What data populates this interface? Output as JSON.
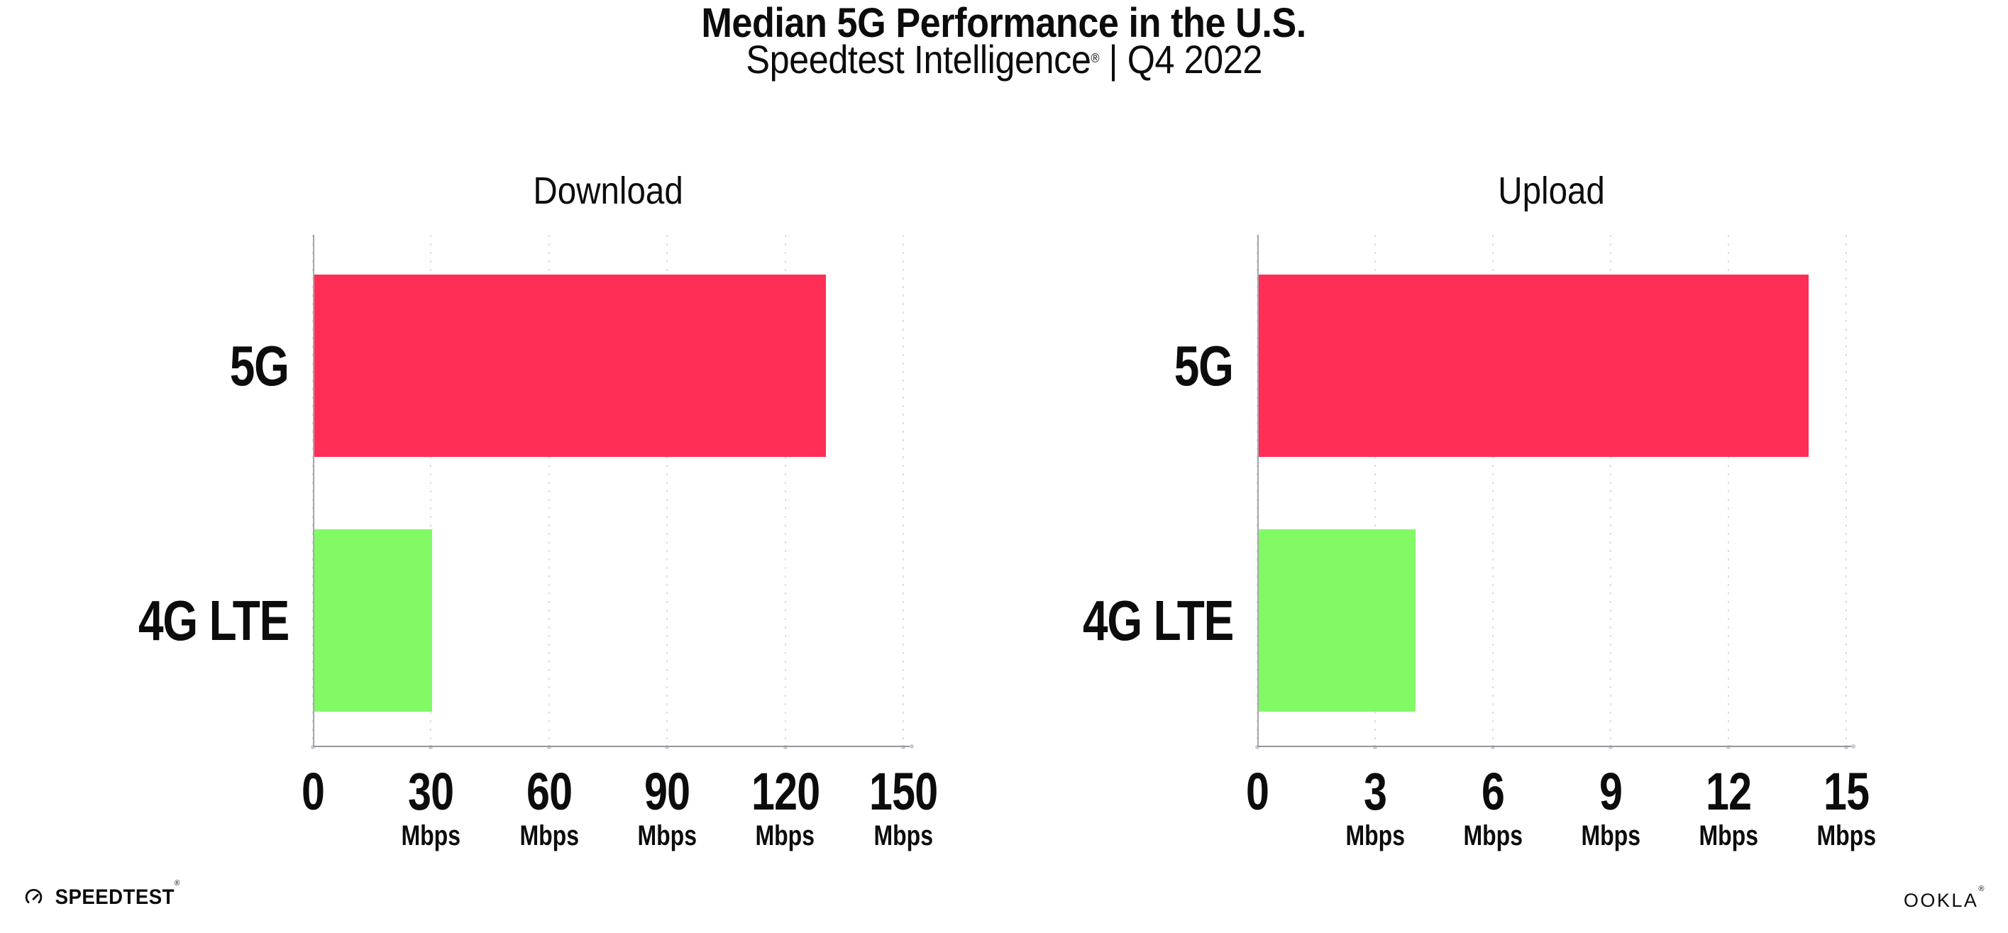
{
  "header": {
    "title": "Median 5G Performance in the U.S.",
    "subtitle_brand": "Speedtest Intelligence",
    "subtitle_mark": "®",
    "subtitle_rest": " | Q4 2022"
  },
  "chart_data": [
    {
      "type": "bar",
      "orientation": "horizontal",
      "title": "Download",
      "categories": [
        "5G",
        "4G LTE"
      ],
      "values": [
        130,
        30
      ],
      "unit": "Mbps",
      "xlabel": "",
      "ylabel": "",
      "xlim": [
        0,
        150
      ],
      "xticks": [
        0,
        30,
        60,
        90,
        120,
        150
      ],
      "bar_colors": [
        "#ff2e56",
        "#82fa66"
      ],
      "grid": "vertical-dotted",
      "legend": "none"
    },
    {
      "type": "bar",
      "orientation": "horizontal",
      "title": "Upload",
      "categories": [
        "5G",
        "4G LTE"
      ],
      "values": [
        14,
        4
      ],
      "unit": "Mbps",
      "xlabel": "",
      "ylabel": "",
      "xlim": [
        0,
        15
      ],
      "xticks": [
        0,
        3,
        6,
        9,
        12,
        15
      ],
      "bar_colors": [
        "#ff2e56",
        "#82fa66"
      ],
      "grid": "vertical-dotted",
      "legend": "none"
    }
  ],
  "footer": {
    "speedtest_label": "SPEEDTEST",
    "speedtest_mark": "®",
    "speedtest_icon": "gauge-icon",
    "ookla_label": "OOKLA",
    "ookla_mark": "®"
  },
  "colors": {
    "bar_5g": "#ff2e56",
    "bar_4g_lte": "#82fa66",
    "axis_line": "#98989c",
    "grid_dots": "#dcdde8",
    "text": "#0c0c0c"
  }
}
